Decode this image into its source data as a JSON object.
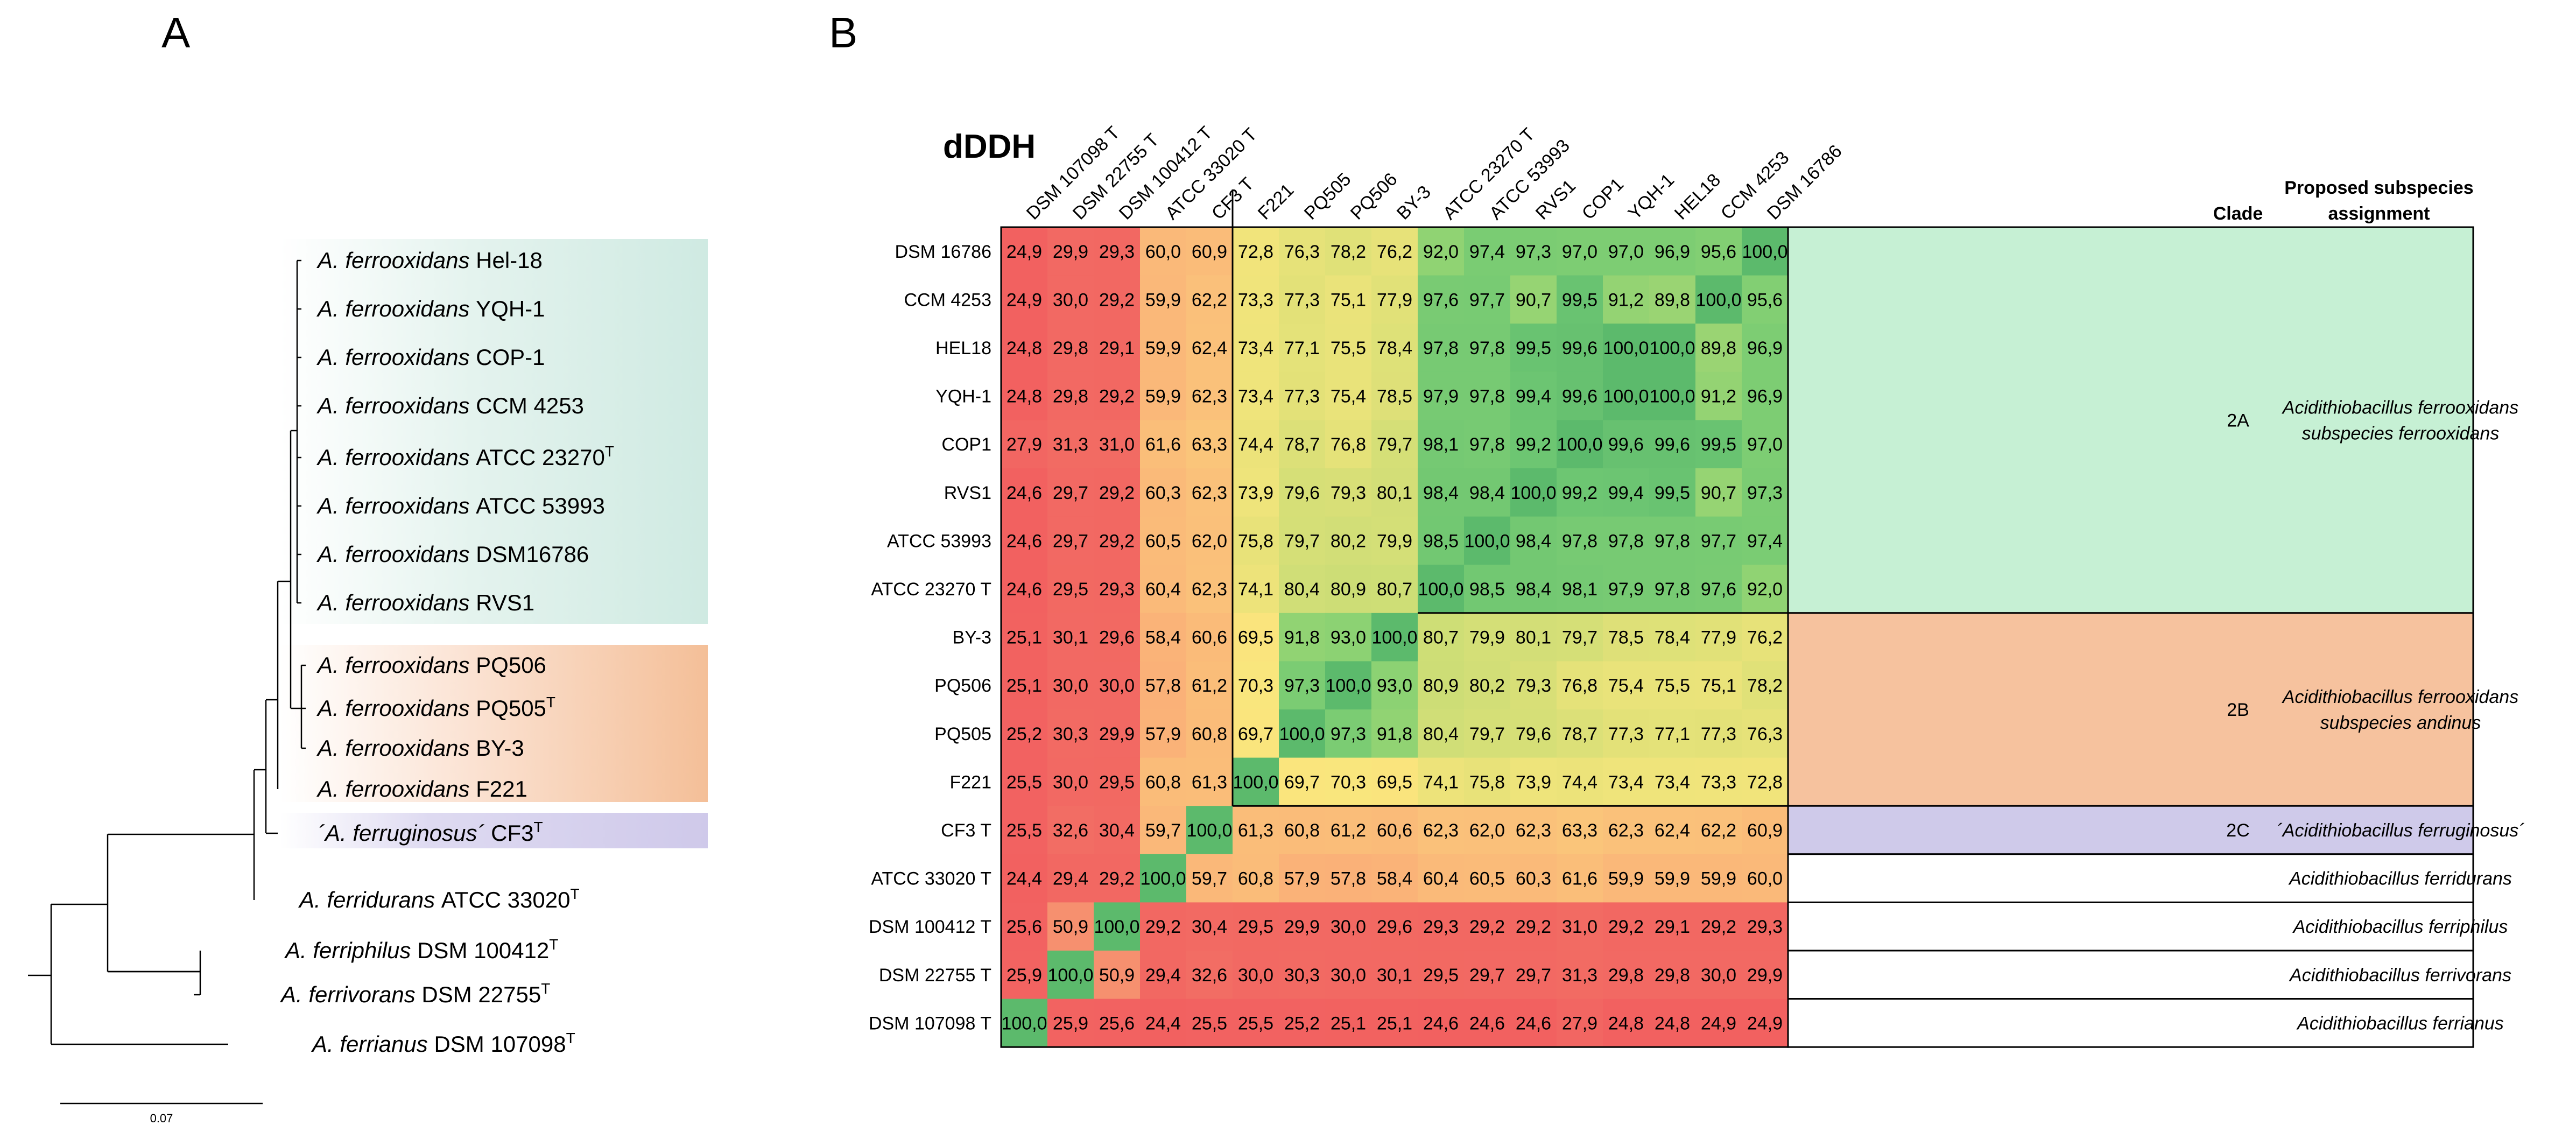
{
  "panels": {
    "a": "A",
    "b": "B"
  },
  "tree": {
    "scale_label": "0.07",
    "clade_colors": {
      "2A": "#d3ece4",
      "2B": "#f6c9a8",
      "2C": "#d2cdeb"
    },
    "leaves": [
      {
        "species": "A. ferrooxidans",
        "strain": "Hel-18",
        "sup": ""
      },
      {
        "species": "A. ferrooxidans",
        "strain": "YQH-1",
        "sup": ""
      },
      {
        "species": "A. ferrooxidans",
        "strain": "COP-1",
        "sup": ""
      },
      {
        "species": "A. ferrooxidans",
        "strain": "CCM 4253",
        "sup": ""
      },
      {
        "species": "A. ferrooxidans",
        "strain": "ATCC 23270",
        "sup": "T"
      },
      {
        "species": "A. ferrooxidans",
        "strain": "ATCC 53993",
        "sup": ""
      },
      {
        "species": "A. ferrooxidans",
        "strain": "DSM16786",
        "sup": ""
      },
      {
        "species": "A. ferrooxidans",
        "strain": "RVS1",
        "sup": ""
      },
      {
        "species": "A. ferrooxidans",
        "strain": "PQ506",
        "sup": ""
      },
      {
        "species": "A. ferrooxidans",
        "strain": "PQ505",
        "sup": "T"
      },
      {
        "species": "A. ferrooxidans",
        "strain": "BY-3",
        "sup": ""
      },
      {
        "species": "A. ferrooxidans",
        "strain": "F221",
        "sup": ""
      },
      {
        "species": "´A. ferruginosus´",
        "strain": "CF3",
        "sup": "T"
      },
      {
        "species": "A. ferridurans",
        "strain": "ATCC 33020",
        "sup": "T"
      },
      {
        "species": "A. ferriphilus",
        "strain": "DSM 100412",
        "sup": "T"
      },
      {
        "species": "A. ferrivorans",
        "strain": "DSM 22755",
        "sup": "T"
      },
      {
        "species": "A. ferrianus",
        "strain": "DSM 107098",
        "sup": "T"
      }
    ]
  },
  "chart_data": {
    "type": "heatmap",
    "title": "dDDH",
    "columns": [
      "DSM 107098 T",
      "DSM 22755 T",
      "DSM 100412 T",
      "ATCC 33020  T",
      "CF3  T",
      "F221",
      "PQ505",
      "PQ506",
      "BY-3",
      "ATCC 23270 T",
      "ATCC 53993",
      "RVS1",
      "COP1",
      "YQH-1",
      "HEL18",
      "CCM 4253",
      "DSM 16786"
    ],
    "rows": [
      "DSM 16786",
      "CCM 4253",
      "HEL18",
      "YQH-1",
      "COP1",
      "RVS1",
      "ATCC 53993",
      "ATCC 23270 T",
      "BY-3",
      "PQ506",
      "PQ505",
      "F221",
      "CF3  T",
      "ATCC 33020  T",
      "DSM 100412  T",
      "DSM 22755  T",
      "DSM 107098  T"
    ],
    "values": [
      [
        "24,9",
        "29,9",
        "29,3",
        "60,0",
        "60,9",
        "72,8",
        "76,3",
        "78,2",
        "76,2",
        "92,0",
        "97,4",
        "97,3",
        "97,0",
        "97,0",
        "96,9",
        "95,6",
        "100,0"
      ],
      [
        "24,9",
        "30,0",
        "29,2",
        "59,9",
        "62,2",
        "73,3",
        "77,3",
        "75,1",
        "77,9",
        "97,6",
        "97,7",
        "90,7",
        "99,5",
        "91,2",
        "89,8",
        "100,0",
        "95,6"
      ],
      [
        "24,8",
        "29,8",
        "29,1",
        "59,9",
        "62,4",
        "73,4",
        "77,1",
        "75,5",
        "78,4",
        "97,8",
        "97,8",
        "99,5",
        "99,6",
        "100,0",
        "100,0",
        "89,8",
        "96,9"
      ],
      [
        "24,8",
        "29,8",
        "29,2",
        "59,9",
        "62,3",
        "73,4",
        "77,3",
        "75,4",
        "78,5",
        "97,9",
        "97,8",
        "99,4",
        "99,6",
        "100,0",
        "100,0",
        "91,2",
        "96,9"
      ],
      [
        "27,9",
        "31,3",
        "31,0",
        "61,6",
        "63,3",
        "74,4",
        "78,7",
        "76,8",
        "79,7",
        "98,1",
        "97,8",
        "99,2",
        "100,0",
        "99,6",
        "99,6",
        "99,5",
        "97,0"
      ],
      [
        "24,6",
        "29,7",
        "29,2",
        "60,3",
        "62,3",
        "73,9",
        "79,6",
        "79,3",
        "80,1",
        "98,4",
        "98,4",
        "100,0",
        "99,2",
        "99,4",
        "99,5",
        "90,7",
        "97,3"
      ],
      [
        "24,6",
        "29,7",
        "29,2",
        "60,5",
        "62,0",
        "75,8",
        "79,7",
        "80,2",
        "79,9",
        "98,5",
        "100,0",
        "98,4",
        "97,8",
        "97,8",
        "97,8",
        "97,7",
        "97,4"
      ],
      [
        "24,6",
        "29,5",
        "29,3",
        "60,4",
        "62,3",
        "74,1",
        "80,4",
        "80,9",
        "80,7",
        "100,0",
        "98,5",
        "98,4",
        "98,1",
        "97,9",
        "97,8",
        "97,6",
        "92,0"
      ],
      [
        "25,1",
        "30,1",
        "29,6",
        "58,4",
        "60,6",
        "69,5",
        "91,8",
        "93,0",
        "100,0",
        "80,7",
        "79,9",
        "80,1",
        "79,7",
        "78,5",
        "78,4",
        "77,9",
        "76,2"
      ],
      [
        "25,1",
        "30,0",
        "30,0",
        "57,8",
        "61,2",
        "70,3",
        "97,3",
        "100,0",
        "93,0",
        "80,9",
        "80,2",
        "79,3",
        "76,8",
        "75,4",
        "75,5",
        "75,1",
        "78,2"
      ],
      [
        "25,2",
        "30,3",
        "29,9",
        "57,9",
        "60,8",
        "69,7",
        "100,0",
        "97,3",
        "91,8",
        "80,4",
        "79,7",
        "79,6",
        "78,7",
        "77,3",
        "77,1",
        "77,3",
        "76,3"
      ],
      [
        "25,5",
        "30,0",
        "29,5",
        "60,8",
        "61,3",
        "100,0",
        "69,7",
        "70,3",
        "69,5",
        "74,1",
        "75,8",
        "73,9",
        "74,4",
        "73,4",
        "73,4",
        "73,3",
        "72,8"
      ],
      [
        "25,5",
        "32,6",
        "30,4",
        "59,7",
        "100,0",
        "61,3",
        "60,8",
        "61,2",
        "60,6",
        "62,3",
        "62,0",
        "62,3",
        "63,3",
        "62,3",
        "62,4",
        "62,2",
        "60,9"
      ],
      [
        "24,4",
        "29,4",
        "29,2",
        "100,0",
        "59,7",
        "60,8",
        "57,9",
        "57,8",
        "58,4",
        "60,4",
        "60,5",
        "60,3",
        "61,6",
        "59,9",
        "59,9",
        "59,9",
        "60,0"
      ],
      [
        "25,6",
        "50,9",
        "100,0",
        "29,2",
        "30,4",
        "29,5",
        "29,9",
        "30,0",
        "29,6",
        "29,3",
        "29,2",
        "29,2",
        "31,0",
        "29,2",
        "29,1",
        "29,2",
        "29,3"
      ],
      [
        "25,9",
        "100,0",
        "50,9",
        "29,4",
        "32,6",
        "30,0",
        "30,3",
        "30,0",
        "30,1",
        "29,5",
        "29,7",
        "29,7",
        "31,3",
        "29,8",
        "29,8",
        "30,0",
        "29,9"
      ],
      [
        "100,0",
        "25,9",
        "25,6",
        "24,4",
        "25,5",
        "25,5",
        "25,2",
        "25,1",
        "25,1",
        "24,6",
        "24,6",
        "24,6",
        "27,9",
        "24,8",
        "24,8",
        "24,9",
        "24,9"
      ]
    ],
    "clade_header": "Clade",
    "subspecies_header_line1": "Proposed subspecies",
    "subspecies_header_line2": "assignment",
    "assignments": [
      {
        "clade": "2A",
        "line1": "Acidithiobacillus ferrooxidans",
        "line2": "subspecies ferrooxidans",
        "color": "#c6f0d4"
      },
      {
        "clade": "2B",
        "line1": "Acidithiobacillus ferrooxidans",
        "line2": "subspecies andinus",
        "color": "#f6c29e"
      },
      {
        "clade": "2C",
        "line1": "´Acidithiobacillus ferruginosus´",
        "line2": "",
        "color": "#cfcaea"
      },
      {
        "clade": "",
        "line1": "Acidithiobacillus ferridurans",
        "line2": "",
        "color": "#ffffff"
      },
      {
        "clade": "",
        "line1": "Acidithiobacillus ferriphilus",
        "line2": "",
        "color": "#ffffff"
      },
      {
        "clade": "",
        "line1": "Acidithiobacillus ferrivorans",
        "line2": "",
        "color": "#ffffff"
      },
      {
        "clade": "",
        "line1": "Acidithiobacillus ferrianus",
        "line2": "",
        "color": "#ffffff"
      }
    ]
  }
}
